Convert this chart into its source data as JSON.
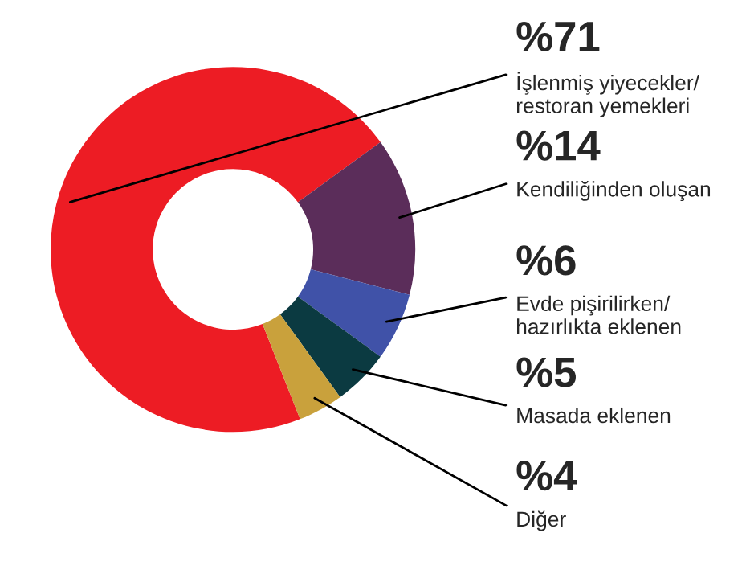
{
  "chart_data": {
    "type": "donut",
    "categories": [
      "İşlenmiş yiyecekler/\nrestoran yemekleri",
      "Kendiliğinden oluşan",
      "Evde pişirilirken/\nhazırlıkta eklenen",
      "Masada eklenen",
      "Diğer"
    ],
    "values": [
      71,
      14,
      6,
      5,
      4
    ],
    "colors": [
      "#ed1c24",
      "#5b2d5a",
      "#4052a8",
      "#0b3a41",
      "#c9a13c"
    ],
    "value_labels": [
      "%71",
      "%14",
      "%6",
      "%5",
      "%4"
    ],
    "legend": false
  }
}
